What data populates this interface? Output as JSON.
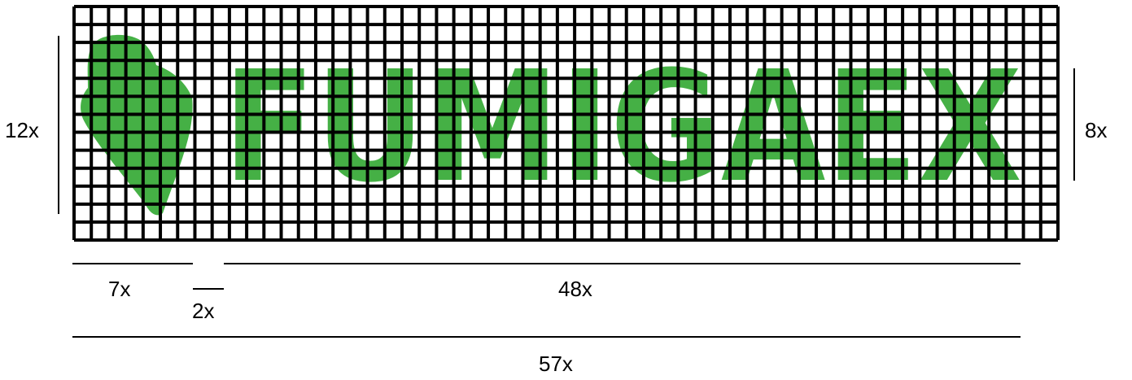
{
  "logo": {
    "text": "FUMIGAEX",
    "brand_color": "#45B045",
    "icon": "fumigator-droplet-icon"
  },
  "grid": {
    "line_color": "#000000",
    "background": "#ffffff",
    "columns": 57,
    "rows": 13
  },
  "dimensions": {
    "left_height": "12x",
    "right_height": "8x",
    "icon_width": "7x",
    "gap_width": "2x",
    "text_width": "48x",
    "total_width": "57x"
  }
}
